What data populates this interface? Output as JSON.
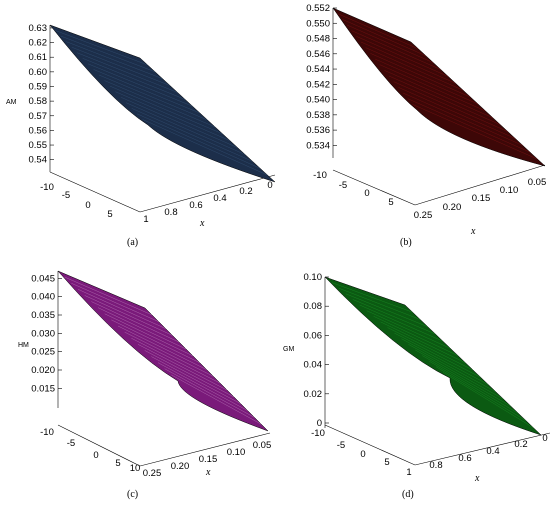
{
  "panels": [
    {
      "caption": "(a)",
      "surface_color": "#1c2e4a",
      "line_color": "#3a5a80",
      "chart_data": {
        "type": "surface",
        "zlabel": "AM",
        "xlabel": "x",
        "z_ticks": [
          "0.63",
          "0.62",
          "0.61",
          "0.60",
          "0.59",
          "0.58",
          "0.57",
          "0.56",
          "0.55",
          "0.54"
        ],
        "depth_ticks": [
          "-10",
          "-5",
          "0",
          "5"
        ],
        "x_ticks": [
          "1",
          "0.8",
          "0.6",
          "0.4",
          "0.2",
          "0"
        ],
        "zlim": [
          0.535,
          0.632
        ]
      }
    },
    {
      "caption": "(b)",
      "surface_color": "#3d0707",
      "line_color": "#8a1616",
      "chart_data": {
        "type": "surface",
        "zlabel": "",
        "xlabel": "x",
        "z_ticks": [
          "0.552",
          "0.550",
          "0.548",
          "0.546",
          "0.544",
          "0.542",
          "0.540",
          "0.538",
          "0.536",
          "0.534"
        ],
        "depth_ticks": [
          "-10",
          "-5",
          "0",
          "5"
        ],
        "x_ticks": [
          "0.25",
          "0.20",
          "0.15",
          "0.10",
          "0.05"
        ],
        "zlim": [
          0.533,
          0.552
        ]
      }
    },
    {
      "caption": "(c)",
      "surface_color": "#7a1a7a",
      "line_color": "#c890c8",
      "chart_data": {
        "type": "surface",
        "zlabel": "HM",
        "xlabel": "x",
        "z_ticks": [
          "0.045",
          "0.040",
          "0.035",
          "0.030",
          "0.025",
          "0.020",
          "0.015"
        ],
        "depth_ticks": [
          "-10",
          "-5",
          "0",
          "5",
          "10"
        ],
        "x_ticks": [
          "0.25",
          "0.20",
          "0.15",
          "0.10",
          "0.05"
        ],
        "zlim": [
          0.011,
          0.047
        ]
      }
    },
    {
      "caption": "(d)",
      "surface_color": "#0b5a12",
      "line_color": "#1f9a2a",
      "chart_data": {
        "type": "surface",
        "zlabel": "GM",
        "xlabel": "x",
        "z_ticks": [
          "0.10",
          "0.08",
          "0.06",
          "0.04",
          "0.02",
          "0"
        ],
        "depth_ticks": [
          "-10",
          "-5",
          "0",
          "5"
        ],
        "x_ticks": [
          "1",
          "0.8",
          "0.6",
          "0.4",
          "0.2",
          "0"
        ],
        "zlim": [
          0,
          0.1
        ]
      }
    }
  ]
}
